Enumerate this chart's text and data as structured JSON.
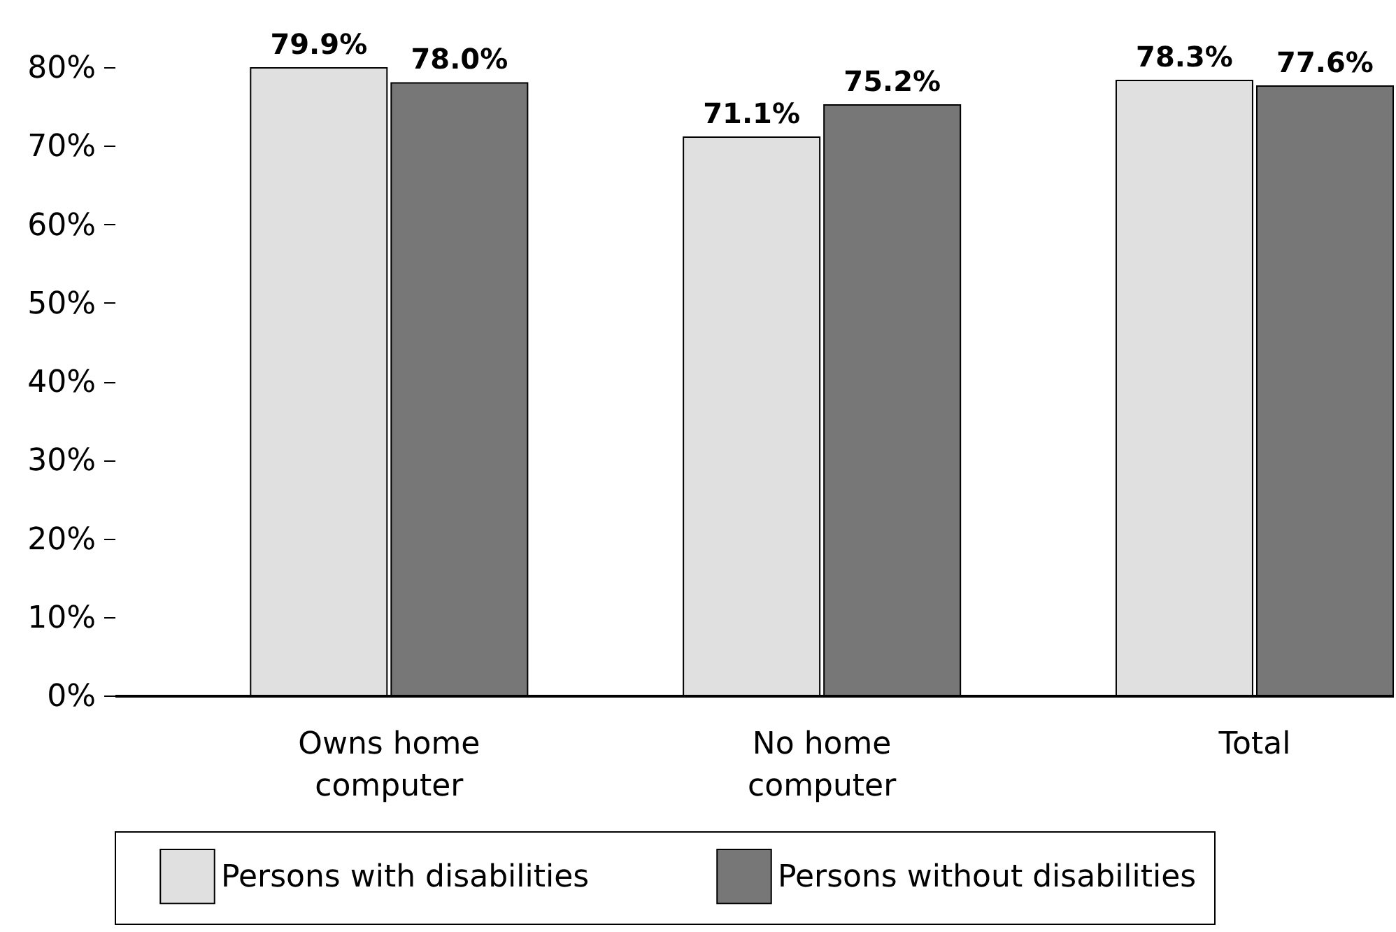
{
  "chart_data": {
    "type": "bar",
    "categories": [
      "Owns home computer",
      "No home computer",
      "Total"
    ],
    "series": [
      {
        "name": "Persons with disabilities",
        "color": "#e0e0e0",
        "values": [
          79.9,
          71.1,
          78.3
        ],
        "value_labels": [
          "79.9%",
          "71.1%",
          "78.3%"
        ]
      },
      {
        "name": "Persons without disabilities",
        "color": "#777777",
        "values": [
          78.0,
          75.2,
          77.6
        ],
        "value_labels": [
          "78.0%",
          "75.2%",
          "77.6%"
        ]
      }
    ],
    "ylim": [
      0,
      80
    ],
    "yticks": [
      {
        "value": 0,
        "label": "0%"
      },
      {
        "value": 10,
        "label": "10%"
      },
      {
        "value": 20,
        "label": "20%"
      },
      {
        "value": 30,
        "label": "30%"
      },
      {
        "value": 40,
        "label": "40%"
      },
      {
        "value": 50,
        "label": "50%"
      },
      {
        "value": 60,
        "label": "60%"
      },
      {
        "value": 70,
        "label": "70%"
      },
      {
        "value": 80,
        "label": "80%"
      }
    ],
    "grid": false,
    "legend": "bottom"
  }
}
